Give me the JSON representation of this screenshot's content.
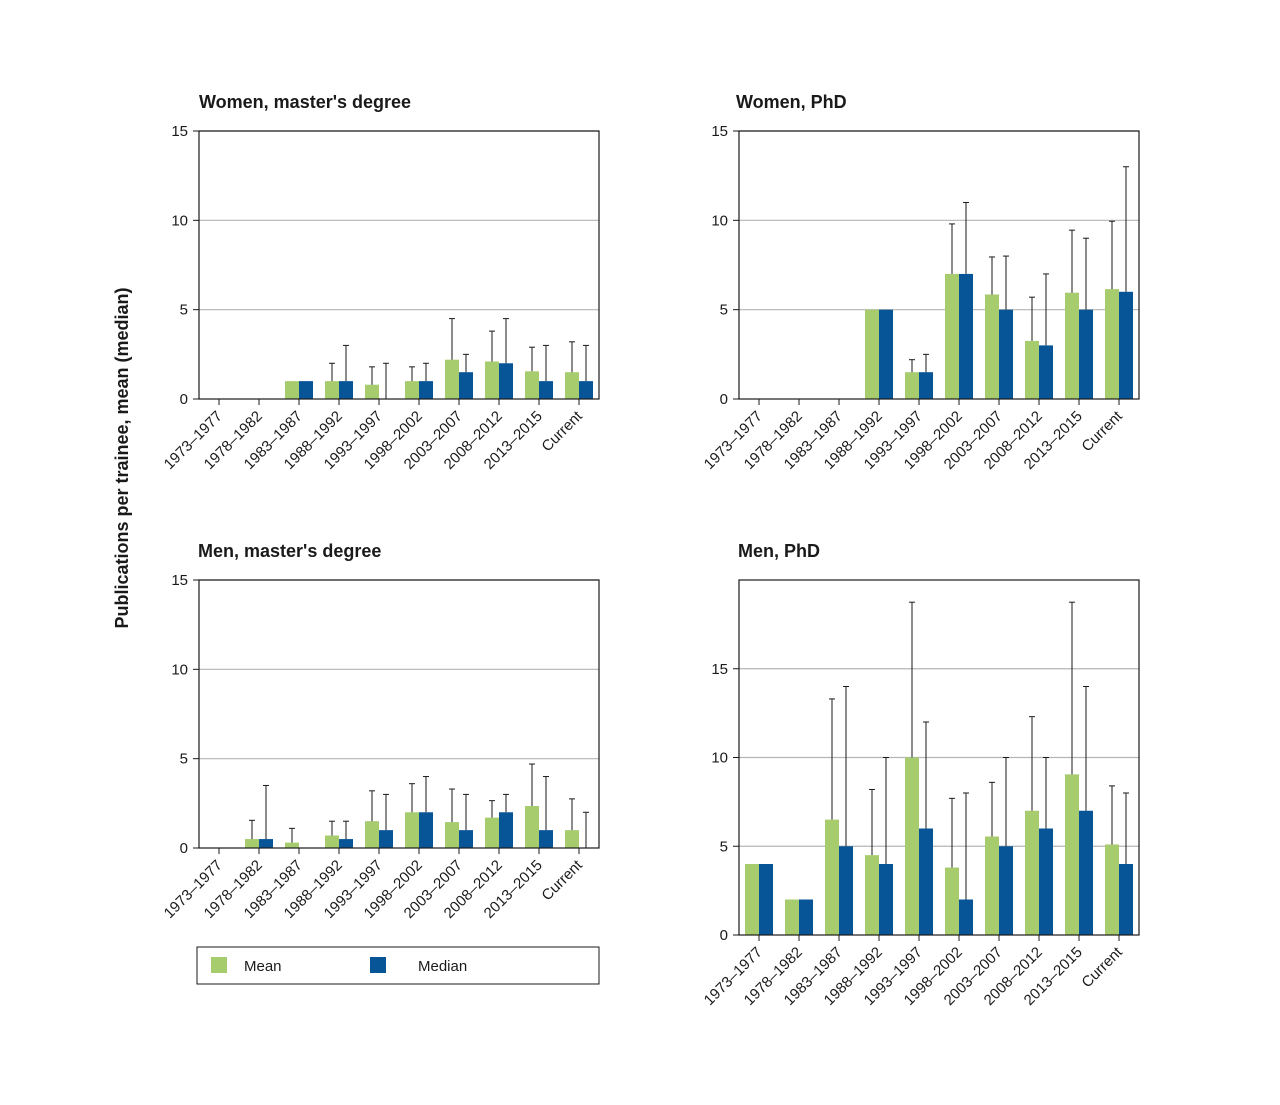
{
  "figure": {
    "ylabel": "Publications per trainee, mean (median)"
  },
  "colors": {
    "mean": "#a6cc6e",
    "median": "#075497",
    "error_bar": "#1a1a1a",
    "grid": "#b5b5b5"
  },
  "legend": {
    "mean_label": "Mean",
    "median_label": "Median"
  },
  "chart_data": [
    {
      "type": "bar",
      "title": "Women, master's degree",
      "categories": [
        "1973–1977",
        "1978–1982",
        "1983–1987",
        "1988–1992",
        "1993–1997",
        "1998–2002",
        "2003–2007",
        "2008–2012",
        "2013–2015",
        "Current"
      ],
      "ylim": [
        0,
        15
      ],
      "yticks": [
        0,
        5,
        10,
        15
      ],
      "grid": true,
      "series": [
        {
          "name": "Mean",
          "values": [
            null,
            null,
            1.0,
            1.0,
            0.8,
            1.0,
            2.2,
            2.1,
            1.55,
            1.5
          ],
          "error_upper": [
            null,
            null,
            null,
            2.0,
            1.8,
            1.8,
            4.5,
            3.8,
            2.9,
            3.2
          ]
        },
        {
          "name": "Median",
          "values": [
            null,
            null,
            1.0,
            1.0,
            0,
            1.0,
            1.5,
            2.0,
            1.0,
            1.0
          ],
          "error_upper": [
            null,
            null,
            null,
            3.0,
            2.0,
            2.0,
            2.5,
            4.5,
            3.0,
            3.0
          ]
        }
      ]
    },
    {
      "type": "bar",
      "title": "Women, PhD",
      "categories": [
        "1973–1977",
        "1978–1982",
        "1983–1987",
        "1988–1992",
        "1993–1997",
        "1998–2002",
        "2003–2007",
        "2008–2012",
        "2013–2015",
        "Current"
      ],
      "ylim": [
        0,
        15
      ],
      "yticks": [
        0,
        5,
        10,
        15
      ],
      "grid": true,
      "series": [
        {
          "name": "Mean",
          "values": [
            null,
            null,
            null,
            5.0,
            1.5,
            7.0,
            5.85,
            3.25,
            5.95,
            6.15
          ],
          "error_upper": [
            null,
            null,
            null,
            null,
            2.2,
            9.8,
            7.95,
            5.7,
            9.45,
            9.95
          ]
        },
        {
          "name": "Median",
          "values": [
            null,
            null,
            null,
            5.0,
            1.5,
            7.0,
            5.0,
            3.0,
            5.0,
            6.0
          ],
          "error_upper": [
            null,
            null,
            null,
            null,
            2.5,
            11.0,
            8.0,
            7.0,
            9.0,
            13.0
          ]
        }
      ]
    },
    {
      "type": "bar",
      "title": "Men, master's degree",
      "categories": [
        "1973–1977",
        "1978–1982",
        "1983–1987",
        "1988–1992",
        "1993–1997",
        "1998–2002",
        "2003–2007",
        "2008–2012",
        "2013–2015",
        "Current"
      ],
      "ylim": [
        0,
        15
      ],
      "yticks": [
        0,
        5,
        10,
        15
      ],
      "grid": true,
      "series": [
        {
          "name": "Mean",
          "values": [
            null,
            0.5,
            0.3,
            0.7,
            1.5,
            2.0,
            1.45,
            1.7,
            2.35,
            1.0
          ],
          "error_upper": [
            null,
            1.55,
            1.1,
            1.5,
            3.2,
            3.6,
            3.3,
            2.65,
            4.7,
            2.75
          ]
        },
        {
          "name": "Median",
          "values": [
            null,
            0.5,
            0,
            0.5,
            1.0,
            2.0,
            1.0,
            2.0,
            1.0,
            0
          ],
          "error_upper": [
            null,
            3.5,
            null,
            1.5,
            3.0,
            4.0,
            3.0,
            3.0,
            4.0,
            2.0
          ]
        }
      ]
    },
    {
      "type": "bar",
      "title": "Men, PhD",
      "categories": [
        "1973–1977",
        "1978–1982",
        "1983–1987",
        "1988–1992",
        "1993–1997",
        "1998–2002",
        "2003–2007",
        "2008–2012",
        "2013–2015",
        "Current"
      ],
      "ylim": [
        0,
        20
      ],
      "yticks": [
        0,
        5,
        10,
        15
      ],
      "grid": true,
      "series": [
        {
          "name": "Mean",
          "values": [
            4.0,
            2.0,
            6.5,
            4.5,
            10.0,
            3.8,
            5.55,
            7.0,
            9.05,
            5.1
          ],
          "error_upper": [
            null,
            null,
            13.3,
            8.2,
            18.75,
            7.7,
            8.6,
            12.3,
            18.75,
            8.4
          ]
        },
        {
          "name": "Median",
          "values": [
            4.0,
            2.0,
            5.0,
            4.0,
            6.0,
            2.0,
            5.0,
            6.0,
            7.0,
            4.0
          ],
          "error_upper": [
            null,
            null,
            14.0,
            10.0,
            12.0,
            8.0,
            10.0,
            10.0,
            14.0,
            8.0
          ]
        }
      ]
    }
  ]
}
